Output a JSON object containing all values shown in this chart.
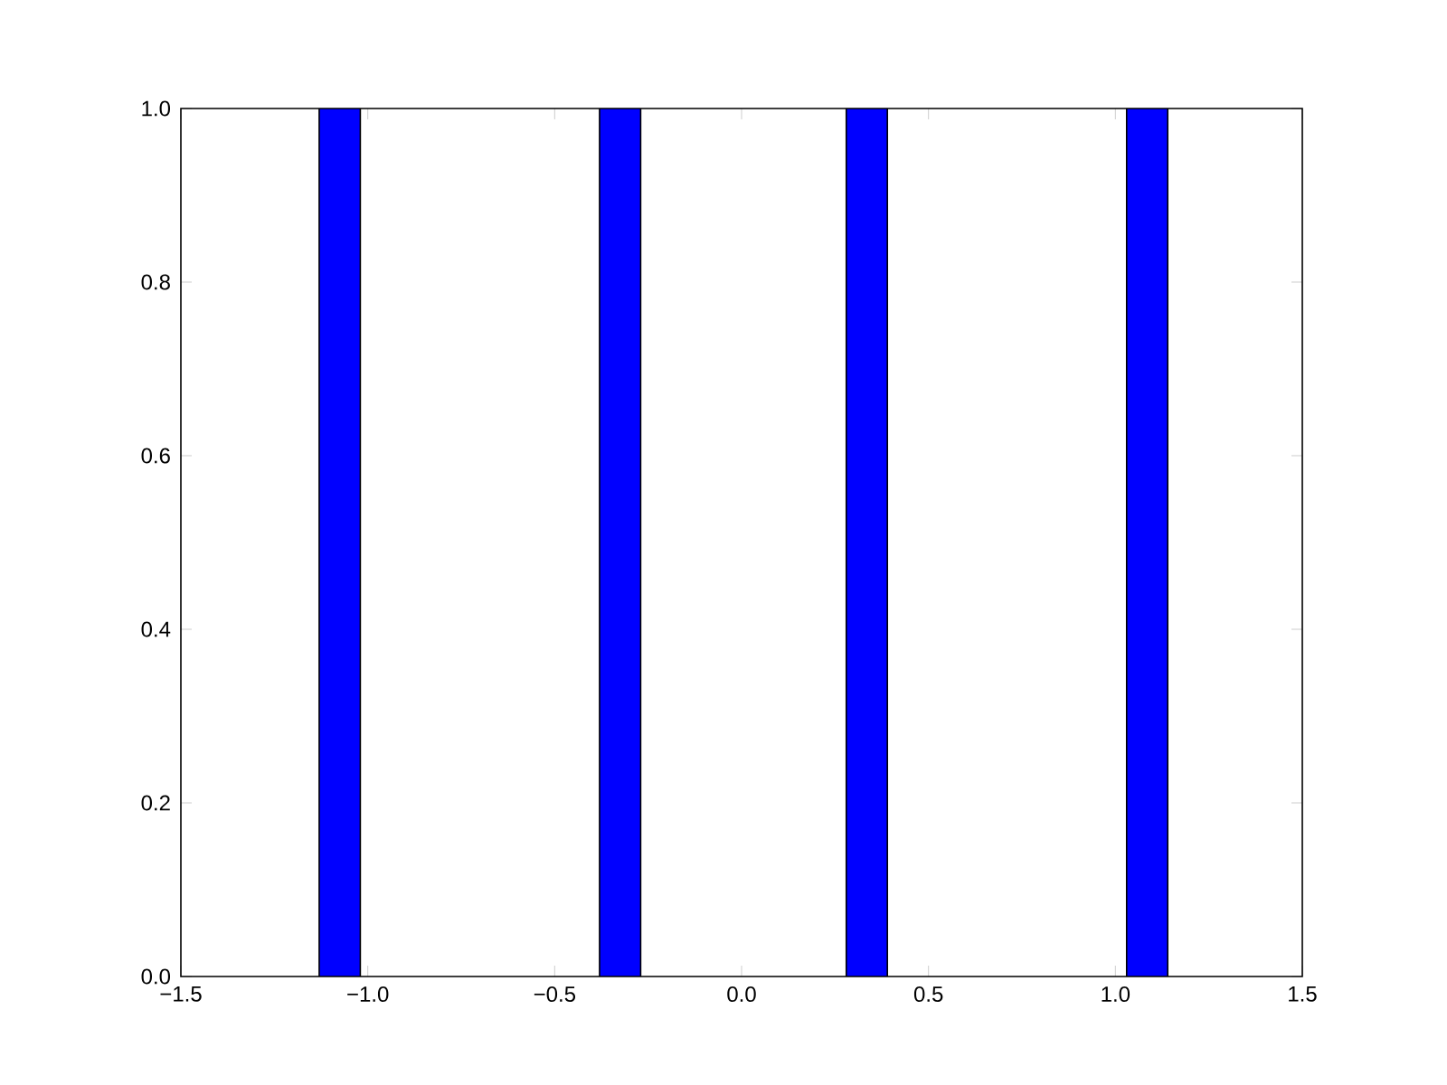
{
  "chart_data": {
    "type": "histogram",
    "bins": [
      -1.13,
      -1.02,
      -0.38,
      -0.27,
      0.28,
      0.39,
      1.03,
      1.14
    ],
    "values": [
      1,
      0,
      1,
      0,
      1,
      0,
      1
    ],
    "color": "#0000ff",
    "xlim": [
      -1.5,
      1.5
    ],
    "xticks": [
      {
        "value": -1.5,
        "label": "−1.5"
      },
      {
        "value": -1.0,
        "label": "−1.0"
      },
      {
        "value": -0.5,
        "label": "−0.5"
      },
      {
        "value": 0,
        "label": "0.0"
      },
      {
        "value": 0.5,
        "label": "0.5"
      },
      {
        "value": 1.0,
        "label": "1.0"
      },
      {
        "value": 1.5,
        "label": "1.5"
      }
    ],
    "ylim": [
      0,
      1
    ],
    "yticks": [
      {
        "value": 0,
        "label": "0.0"
      },
      {
        "value": 0.2,
        "label": "0.2"
      },
      {
        "value": 0.4,
        "label": "0.4"
      },
      {
        "value": 0.6,
        "label": "0.6"
      },
      {
        "value": 0.8,
        "label": "0.8"
      },
      {
        "value": 1.0,
        "label": "1.0"
      }
    ],
    "grid": false
  }
}
